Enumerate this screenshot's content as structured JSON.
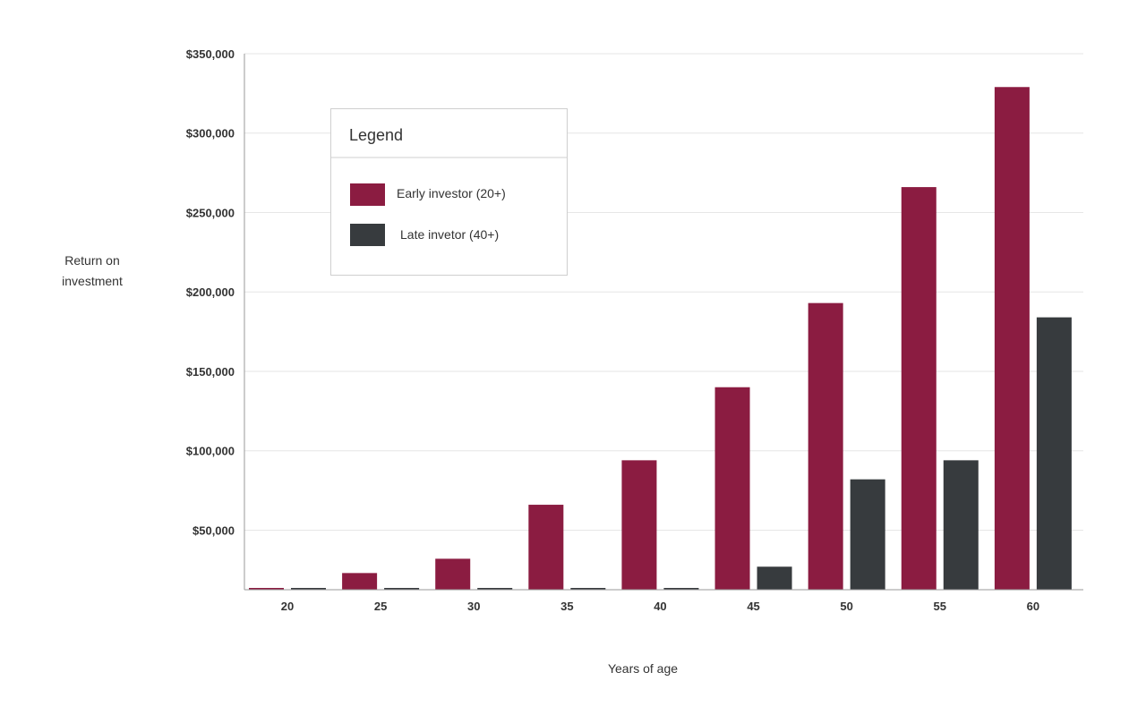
{
  "chart_data": {
    "type": "bar",
    "title": "",
    "xlabel": "Years of age",
    "ylabel_lines": [
      "Return on",
      "investment"
    ],
    "categories": [
      "20",
      "25",
      "30",
      "35",
      "40",
      "45",
      "50",
      "55",
      "60"
    ],
    "series": [
      {
        "name": "Early investor (20+)",
        "color": "#8b1c41",
        "values": [
          2500,
          23000,
          32000,
          66000,
          94000,
          140000,
          193000,
          266000,
          329000
        ]
      },
      {
        "name": "Late invetor (40+)",
        "color": "#373b3e",
        "values": [
          1000,
          1000,
          1000,
          1000,
          2500,
          27000,
          82000,
          94000,
          184000
        ]
      }
    ],
    "yticks": [
      50000,
      100000,
      150000,
      200000,
      250000,
      300000,
      350000
    ],
    "ytick_labels": [
      "$50,000",
      "$100,000",
      "$150,000",
      "$200,000",
      "$250,000",
      "$300,000",
      "$350,000"
    ],
    "ylim": [
      12500,
      350000
    ],
    "grid": true,
    "legend": {
      "title": "Legend",
      "placement": "top-left"
    }
  }
}
